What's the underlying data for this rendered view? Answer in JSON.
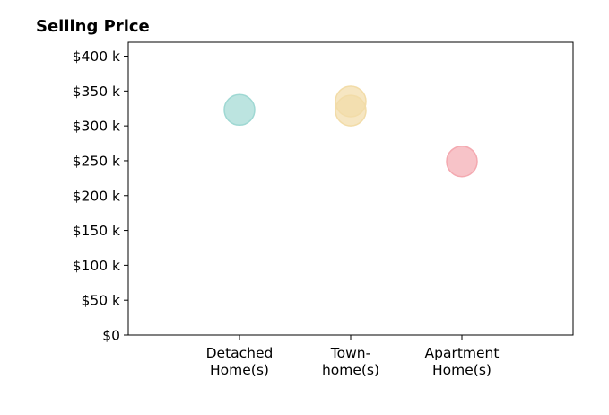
{
  "chart_data": {
    "type": "scatter",
    "title": "Selling Price",
    "xlabel": "",
    "ylabel": "",
    "categories": [
      [
        "Detached",
        "Home(s)"
      ],
      [
        "Town-",
        "home(s)"
      ],
      [
        "Apartment",
        "Home(s)"
      ]
    ],
    "y_ticks": [
      0,
      50000,
      100000,
      150000,
      200000,
      250000,
      300000,
      350000,
      400000
    ],
    "y_tick_labels": [
      "$0",
      "$50 k",
      "$100 k",
      "$150 k",
      "$200 k",
      "$250 k",
      "$300 k",
      "$350 k",
      "$400 k"
    ],
    "ylim": [
      0,
      420000
    ],
    "xlim": [
      -1,
      3
    ],
    "grid": false,
    "points": [
      {
        "category": 0,
        "y": 323000,
        "color": "#9fd8d3"
      },
      {
        "category": 1,
        "y": 335000,
        "color": "#f2dca8"
      },
      {
        "category": 1,
        "y": 322000,
        "color": "#f2dca8"
      },
      {
        "category": 2,
        "y": 249000,
        "color": "#f4a9b0"
      }
    ]
  }
}
